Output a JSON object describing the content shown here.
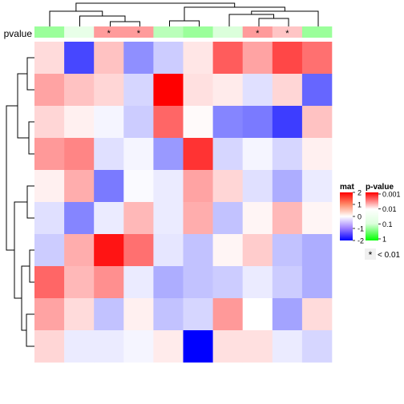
{
  "chart_data": {
    "type": "heatmap",
    "annotation": {
      "label": "pvalue",
      "values": [
        0.2,
        0.02,
        0.003,
        0.003,
        0.08,
        0.2,
        0.03,
        0.003,
        0.005,
        0.2
      ],
      "marks": [
        "",
        "",
        "*",
        "*",
        "",
        "",
        "",
        "*",
        "*",
        ""
      ]
    },
    "matrix": [
      [
        0.35,
        -1.8,
        0.6,
        -1.1,
        -0.5,
        0.25,
        1.6,
        0.9,
        1.8,
        1.4
      ],
      [
        0.9,
        0.6,
        0.4,
        -0.4,
        2.5,
        0.3,
        0.2,
        -0.3,
        0.4,
        -1.5
      ],
      [
        0.4,
        0.15,
        -0.1,
        -0.5,
        1.5,
        0.05,
        -1.2,
        -1.3,
        -1.9,
        0.6
      ],
      [
        1.0,
        1.2,
        -0.3,
        -0.1,
        -1.0,
        2.0,
        -0.4,
        -0.1,
        -0.4,
        0.15
      ],
      [
        0.15,
        0.8,
        -1.3,
        -0.05,
        -0.2,
        0.9,
        0.4,
        -0.3,
        -0.8,
        -0.2
      ],
      [
        -0.3,
        -1.2,
        -0.2,
        0.7,
        -0.2,
        0.8,
        -0.6,
        0.1,
        0.7,
        0.1
      ],
      [
        -0.5,
        0.8,
        2.3,
        1.4,
        -0.25,
        -0.6,
        0.1,
        0.5,
        -0.6,
        -0.8
      ],
      [
        1.5,
        0.7,
        1.1,
        -0.2,
        -0.8,
        -0.6,
        -0.5,
        -0.2,
        -0.5,
        -0.8
      ],
      [
        0.9,
        0.35,
        -0.6,
        0.15,
        -0.6,
        -0.4,
        1.0,
        0.0,
        -0.9,
        0.35
      ],
      [
        0.4,
        -0.2,
        -0.2,
        -0.1,
        0.2,
        -2.5,
        0.3,
        0.3,
        -0.2,
        -0.4
      ]
    ],
    "legend_mat": {
      "title": "mat",
      "ticks": [
        "2",
        "1",
        "0",
        "-1",
        "-2"
      ],
      "range": [
        -2,
        2
      ]
    },
    "legend_pvalue": {
      "title": "p-value",
      "ticks": [
        "0.001",
        "0.01",
        "0.1",
        "1"
      ]
    },
    "significance_legend": {
      "symbol": "*",
      "label": "< 0.01"
    },
    "colors": {
      "high": "#ff0000",
      "mid": "#ffffff",
      "low": "#0000ff",
      "p_low": "#ff0000",
      "p_high": "#00ff00"
    }
  }
}
